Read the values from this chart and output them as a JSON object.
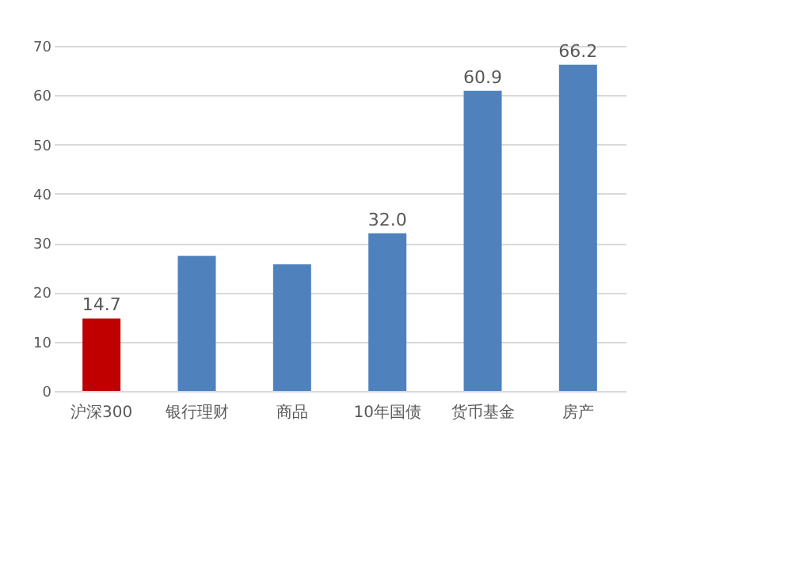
{
  "chart_data": {
    "type": "bar",
    "categories": [
      "沪深300",
      "银行理财",
      "商品",
      "10年国债",
      "货币基金",
      "房产"
    ],
    "values": [
      14.7,
      27.4,
      25.7,
      32.0,
      60.9,
      66.2
    ],
    "colors": [
      "#c00000",
      "#4f81bd",
      "#4f81bd",
      "#4f81bd",
      "#4f81bd",
      "#4f81bd"
    ],
    "value_labels": [
      "14.7",
      null,
      null,
      "32.0",
      "60.9",
      "66.2"
    ],
    "ylim": [
      0,
      70
    ],
    "yticks": [
      0,
      10,
      20,
      30,
      40,
      50,
      60,
      70
    ],
    "grid": "y"
  }
}
